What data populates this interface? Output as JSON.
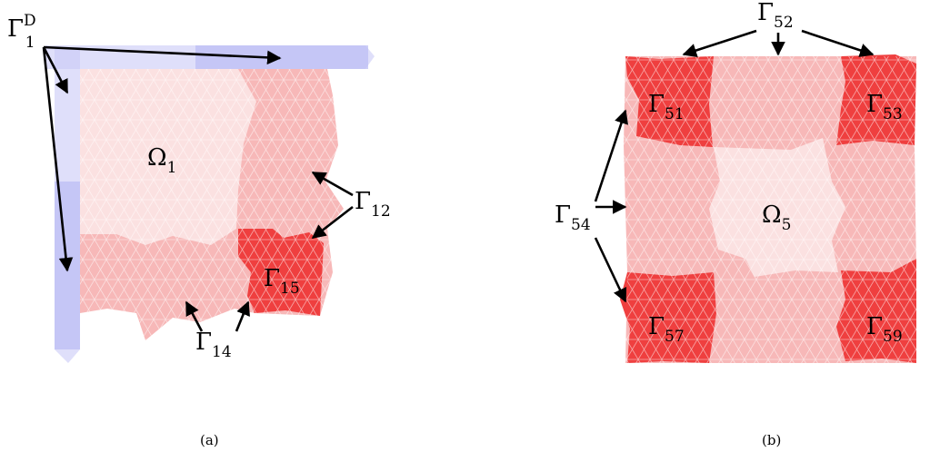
{
  "panel_a": {
    "caption": "(a)",
    "labels": {
      "dirichlet": {
        "main": "Γ",
        "sub": "1",
        "sup": "D"
      },
      "omega": {
        "main": "Ω",
        "sub": "1"
      },
      "g12": {
        "main": "Γ",
        "sub": "12"
      },
      "g15": {
        "main": "Γ",
        "sub": "15"
      },
      "g14": {
        "main": "Γ",
        "sub": "14"
      }
    }
  },
  "panel_b": {
    "caption": "(b)",
    "labels": {
      "g52": {
        "main": "Γ",
        "sub": "52"
      },
      "g51": {
        "main": "Γ",
        "sub": "51"
      },
      "g53": {
        "main": "Γ",
        "sub": "53"
      },
      "g54": {
        "main": "Γ",
        "sub": "54"
      },
      "omega": {
        "main": "Ω",
        "sub": "5"
      },
      "g57": {
        "main": "Γ",
        "sub": "57"
      },
      "g59": {
        "main": "Γ",
        "sub": "59"
      }
    }
  },
  "colors": {
    "interior": "#fbe1e1",
    "overlap": "#f7b8b8",
    "corner": "#ef3f3f",
    "dirichlet": "#c9caf7"
  }
}
